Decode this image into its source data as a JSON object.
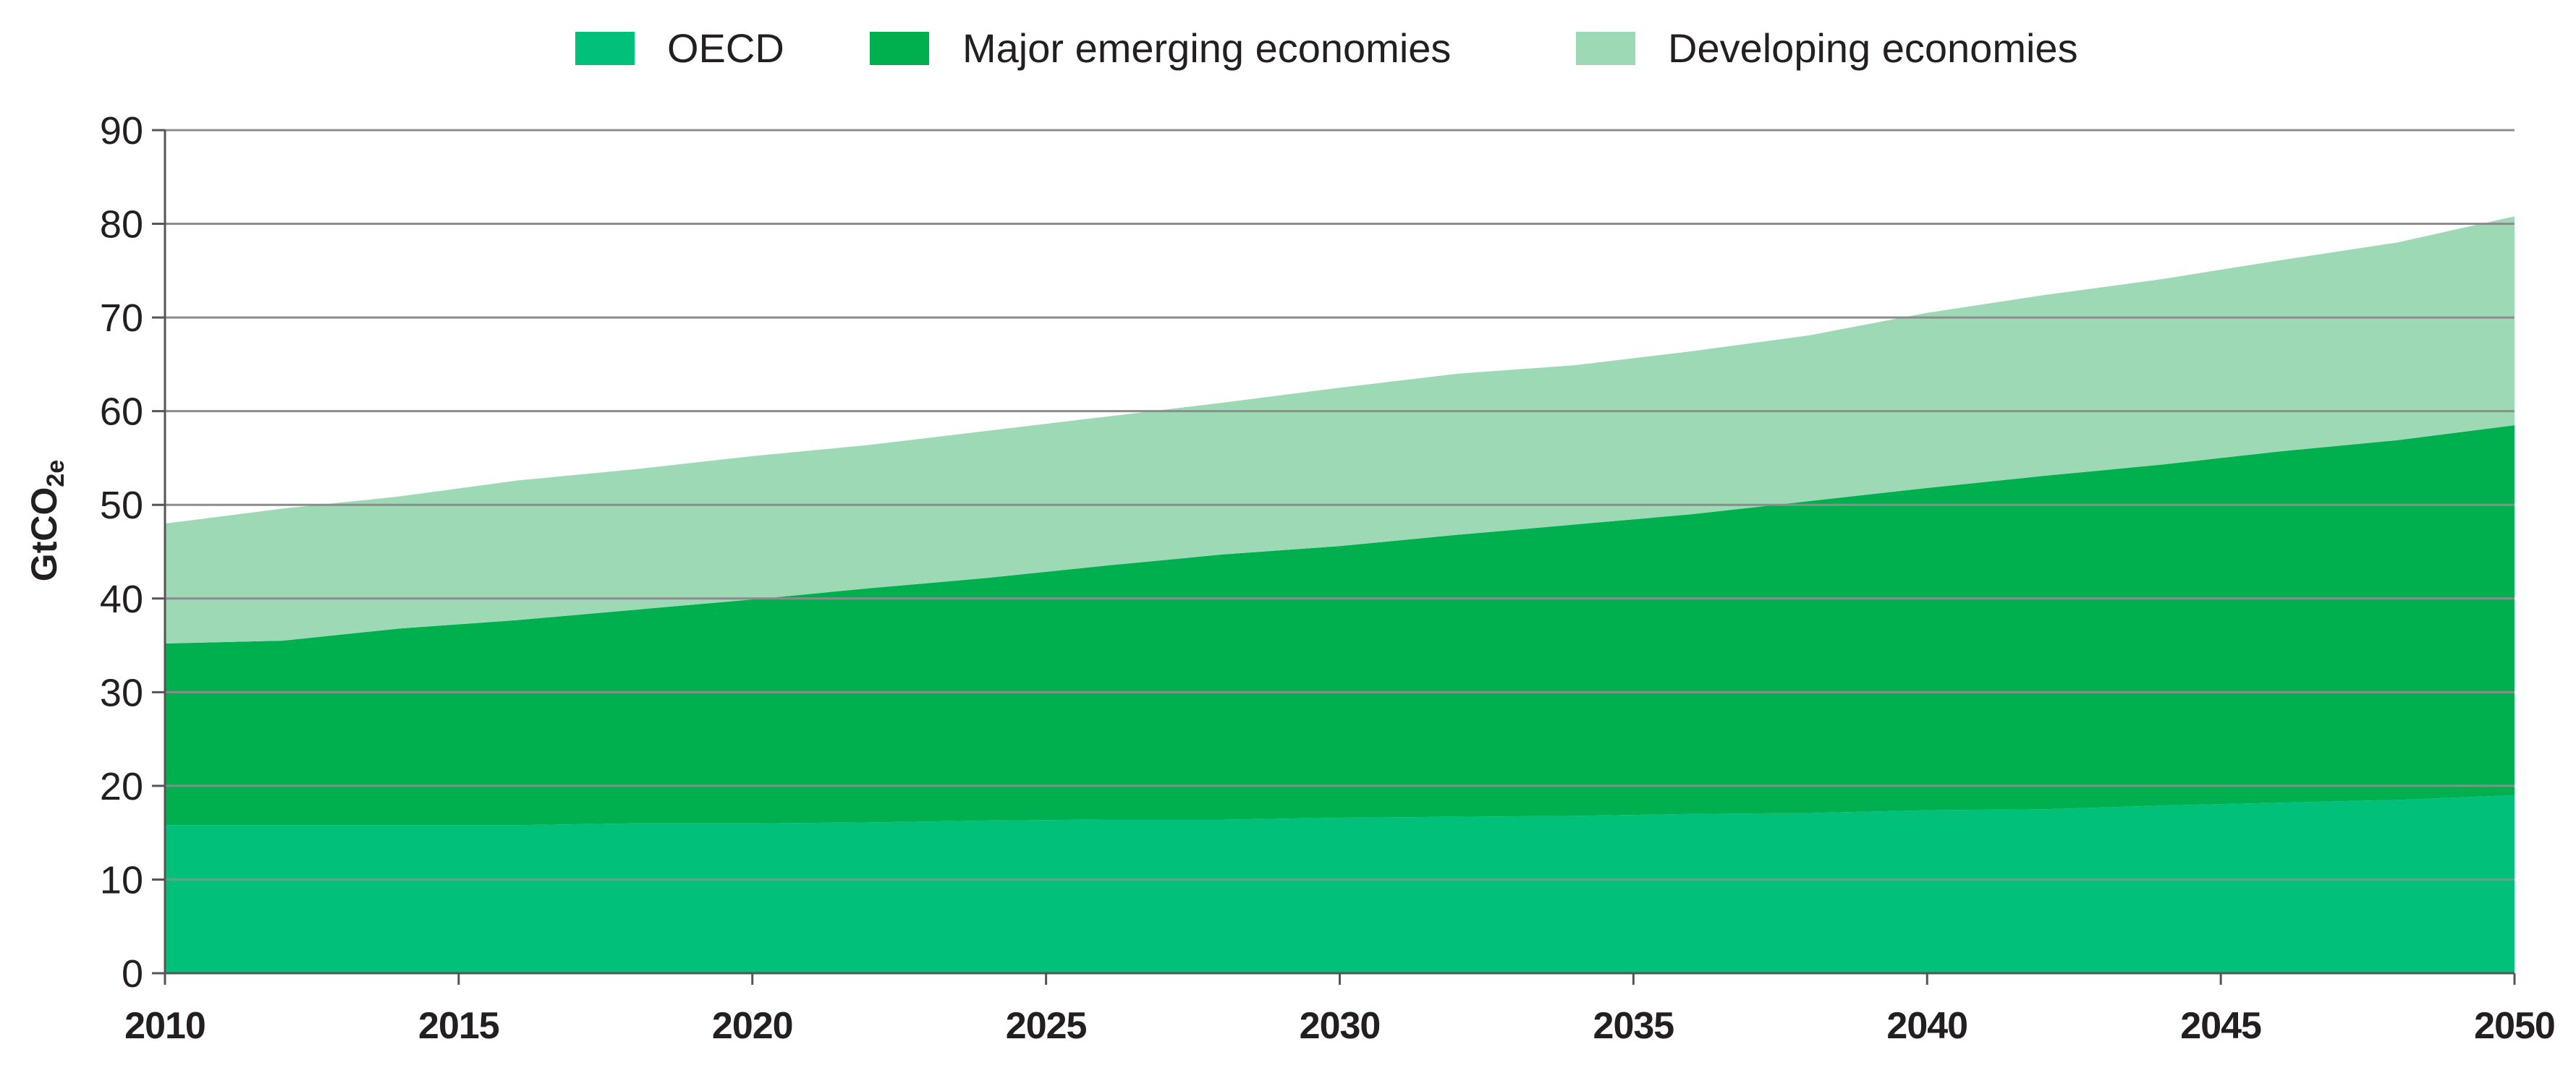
{
  "chart_data": {
    "type": "area",
    "stacked": true,
    "title": "",
    "xlabel": "",
    "ylabel": "GtCO₂e",
    "ylabel_main": "GtCO",
    "ylabel_sub": "2",
    "ylabel_tail": "e",
    "xlim": [
      2010,
      2050
    ],
    "ylim": [
      0,
      90
    ],
    "x_ticks": [
      "2010",
      "2015",
      "2020",
      "2025",
      "2030",
      "2035",
      "2040",
      "2045",
      "2050"
    ],
    "y_ticks": [
      "0",
      "10",
      "20",
      "30",
      "40",
      "50",
      "60",
      "70",
      "80",
      "90"
    ],
    "grid": "horizontal",
    "legend_position": "top",
    "x": [
      2010,
      2012,
      2014,
      2016,
      2018,
      2020,
      2022,
      2024,
      2026,
      2028,
      2030,
      2032,
      2034,
      2036,
      2038,
      2040,
      2042,
      2044,
      2046,
      2048,
      2050
    ],
    "series": [
      {
        "name": "OECD",
        "color": "#00c07a",
        "values": [
          15.8,
          15.8,
          15.8,
          15.8,
          16.0,
          16.0,
          16.1,
          16.3,
          16.4,
          16.4,
          16.6,
          16.7,
          16.8,
          17.0,
          17.1,
          17.4,
          17.5,
          17.9,
          18.2,
          18.5,
          19.0
        ]
      },
      {
        "name": "Major emerging economies",
        "color": "#00b04f",
        "values": [
          19.4,
          19.7,
          21.0,
          21.9,
          22.8,
          23.9,
          25.0,
          25.9,
          27.1,
          28.3,
          29.0,
          30.1,
          31.1,
          32.0,
          33.3,
          34.4,
          35.6,
          36.4,
          37.5,
          38.4,
          39.5
        ]
      },
      {
        "name": "Developing economies",
        "color": "#9ed9b6",
        "values": [
          12.8,
          14.1,
          14.1,
          14.9,
          15.0,
          15.3,
          15.3,
          15.7,
          15.9,
          16.2,
          16.9,
          17.2,
          17.0,
          17.4,
          17.7,
          18.7,
          19.3,
          19.8,
          20.4,
          21.1,
          22.3
        ]
      }
    ]
  }
}
